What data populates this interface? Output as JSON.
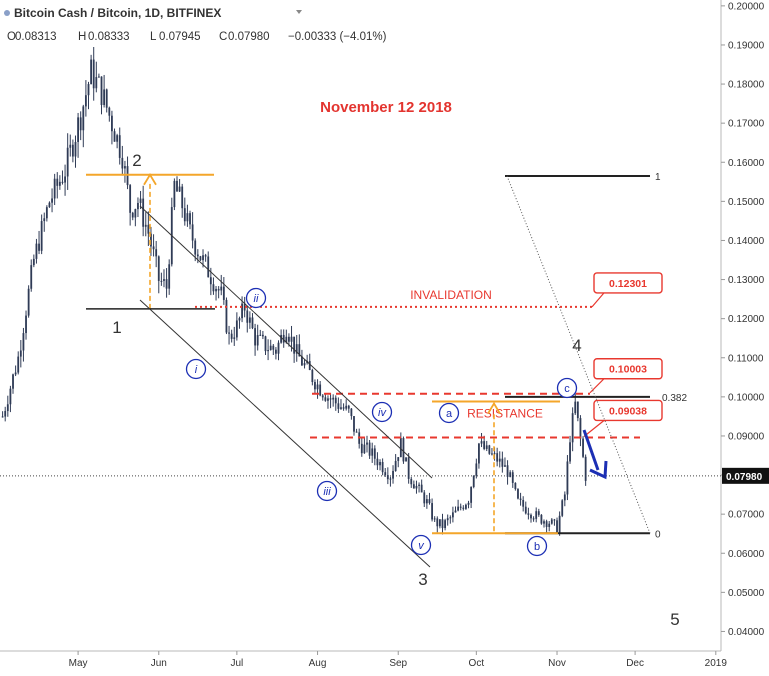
{
  "header": {
    "symbol": "Bitcoin Cash / Bitcoin, 1D, BITFINEX",
    "ohlc": {
      "open_label": "O",
      "open": "0.08313",
      "high_label": "H",
      "high": "0.08333",
      "low_label": "L",
      "low": "0.07945",
      "close_label": "C",
      "close": "0.07980",
      "change": "−0.00333 (−4.01%)"
    }
  },
  "chart_data": {
    "type": "line",
    "title": "November 12 2018",
    "subtitle": "",
    "xlabel": "",
    "ylabel": "",
    "x_ticks": [
      "May",
      "Jun",
      "Jul",
      "Aug",
      "Sep",
      "Oct",
      "Nov",
      "Dec",
      "2019"
    ],
    "y_ticks": [
      "0.20000",
      "0.19000",
      "0.18000",
      "0.17000",
      "0.16000",
      "0.15000",
      "0.14000",
      "0.13000",
      "0.12000",
      "0.11000",
      "0.10000",
      "0.09000",
      "0.08000",
      "0.07000",
      "0.06000",
      "0.05000",
      "0.04000"
    ],
    "ylim": [
      0.035,
      0.2015
    ],
    "xlim": [
      "2018-04-01",
      "2019-01-03"
    ],
    "y_axis_side": "right",
    "last_price": "0.07980",
    "series": [
      {
        "values": [
          [
            "2018-04-02",
            0.095
          ],
          [
            "2018-04-08",
            0.11
          ],
          [
            "2018-04-14",
            0.135
          ],
          [
            "2018-04-20",
            0.15
          ],
          [
            "2018-04-26",
            0.158
          ],
          [
            "2018-05-02",
            0.172
          ],
          [
            "2018-05-06",
            0.183
          ],
          [
            "2018-05-10",
            0.178
          ],
          [
            "2018-05-14",
            0.17
          ],
          [
            "2018-05-18",
            0.162
          ],
          [
            "2018-05-21",
            0.148
          ],
          [
            "2018-05-24",
            0.15
          ],
          [
            "2018-05-28",
            0.142
          ],
          [
            "2018-06-01",
            0.13
          ],
          [
            "2018-06-04",
            0.128
          ],
          [
            "2018-06-07",
            0.154
          ],
          [
            "2018-06-10",
            0.149
          ],
          [
            "2018-06-13",
            0.142
          ],
          [
            "2018-06-17",
            0.136
          ],
          [
            "2018-06-21",
            0.131
          ],
          [
            "2018-06-25",
            0.126
          ],
          [
            "2018-06-28",
            0.115
          ],
          [
            "2018-07-01",
            0.118
          ],
          [
            "2018-07-04",
            0.123
          ],
          [
            "2018-07-08",
            0.115
          ],
          [
            "2018-07-12",
            0.113
          ],
          [
            "2018-07-16",
            0.112
          ],
          [
            "2018-07-20",
            0.118
          ],
          [
            "2018-07-24",
            0.111
          ],
          [
            "2018-07-28",
            0.107
          ],
          [
            "2018-08-01",
            0.103
          ],
          [
            "2018-08-05",
            0.1
          ],
          [
            "2018-08-09",
            0.098
          ],
          [
            "2018-08-13",
            0.096
          ],
          [
            "2018-08-17",
            0.088
          ],
          [
            "2018-08-21",
            0.086
          ],
          [
            "2018-08-25",
            0.083
          ],
          [
            "2018-08-29",
            0.08
          ],
          [
            "2018-09-02",
            0.088
          ],
          [
            "2018-09-05",
            0.08
          ],
          [
            "2018-09-08",
            0.077
          ],
          [
            "2018-09-12",
            0.073
          ],
          [
            "2018-09-15",
            0.068
          ],
          [
            "2018-09-18",
            0.067
          ],
          [
            "2018-09-21",
            0.069
          ],
          [
            "2018-09-24",
            0.071
          ],
          [
            "2018-09-28",
            0.074
          ],
          [
            "2018-10-02",
            0.088
          ],
          [
            "2018-10-05",
            0.086
          ],
          [
            "2018-10-09",
            0.084
          ],
          [
            "2018-10-13",
            0.081
          ],
          [
            "2018-10-17",
            0.073
          ],
          [
            "2018-10-21",
            0.071
          ],
          [
            "2018-10-25",
            0.069
          ],
          [
            "2018-10-29",
            0.068
          ],
          [
            "2018-11-01",
            0.0665
          ],
          [
            "2018-11-04",
            0.075
          ],
          [
            "2018-11-06",
            0.09
          ],
          [
            "2018-11-08",
            0.098
          ],
          [
            "2018-11-10",
            0.089
          ],
          [
            "2018-11-12",
            0.0798
          ]
        ]
      }
    ],
    "annotations": {
      "invalidation_label": "INVALIDATION",
      "invalidation_price": "0.12301",
      "resistance_label": "RESISTANCE",
      "resistance_high": "0.10003",
      "resistance_low": "0.09038",
      "fib_382": "0.382",
      "fib_1": "1",
      "fib_0": "0",
      "wave_labels": [
        "1",
        "2",
        "3",
        "4",
        "5"
      ],
      "sub_wave_labels": [
        "i",
        "ii",
        "iii",
        "iv",
        "v"
      ],
      "corrective_labels": [
        "a",
        "b",
        "c"
      ]
    },
    "colors": {
      "candles": "#2f3b56",
      "orange": "#f4a62a",
      "red": "#e8382f",
      "blue": "#1c2fb4",
      "channel": "#333333",
      "title": "#e3342f"
    },
    "grid": false,
    "legend": "none"
  }
}
